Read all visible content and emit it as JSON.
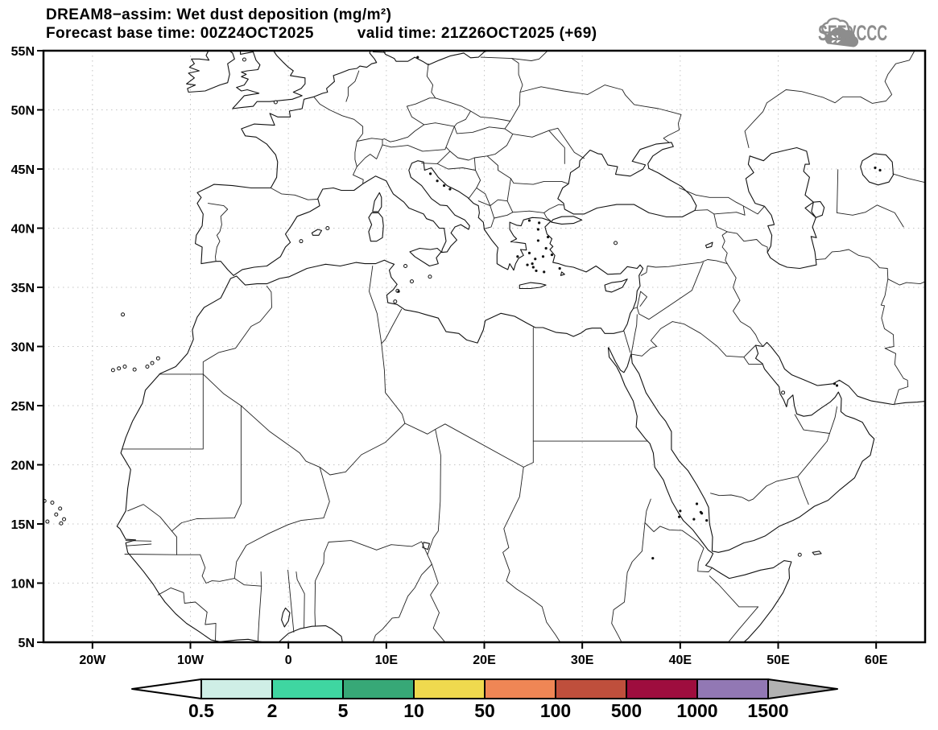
{
  "header": {
    "title": "DREAM8−assim: Wet dust deposition (mg/m²)",
    "forecast_base_label": "Forecast base time: 00Z24OCT2025",
    "valid_time_label": "valid time: 21Z26OCT2025 (+69)",
    "logo_text": "SEEVCCC"
  },
  "map": {
    "lon_min": -25,
    "lon_max": 65,
    "lat_min": 5,
    "lat_max": 55,
    "lat_ticks": [
      {
        "value": 55,
        "label": "55N"
      },
      {
        "value": 50,
        "label": "50N"
      },
      {
        "value": 45,
        "label": "45N"
      },
      {
        "value": 40,
        "label": "40N"
      },
      {
        "value": 35,
        "label": "35N"
      },
      {
        "value": 30,
        "label": "30N"
      },
      {
        "value": 25,
        "label": "25N"
      },
      {
        "value": 20,
        "label": "20N"
      },
      {
        "value": 15,
        "label": "15N"
      },
      {
        "value": 10,
        "label": "10N"
      },
      {
        "value": 5,
        "label": "5N"
      }
    ],
    "lon_ticks": [
      {
        "value": -20,
        "label": "20W"
      },
      {
        "value": -10,
        "label": "10W"
      },
      {
        "value": 0,
        "label": "0"
      },
      {
        "value": 10,
        "label": "10E"
      },
      {
        "value": 20,
        "label": "20E"
      },
      {
        "value": 30,
        "label": "30E"
      },
      {
        "value": 40,
        "label": "40E"
      },
      {
        "value": 50,
        "label": "50E"
      },
      {
        "value": 60,
        "label": "60E"
      }
    ],
    "graticule_lat_step": 5,
    "graticule_lon_step": 10
  },
  "colorbar": {
    "edge_labels": [
      "0.5",
      "2",
      "5",
      "10",
      "50",
      "100",
      "500",
      "1000",
      "1500"
    ],
    "cell_colors": [
      "#cfeee6",
      "#3fd6a1",
      "#37a877",
      "#efd94e",
      "#ef8655",
      "#bf4f3c",
      "#9e0d3e",
      "#9278b4"
    ],
    "under_range_color": "#ffffff",
    "over_range_color": "#b2b2b2",
    "outline_color": "#000000"
  },
  "chart_data": {
    "type": "map",
    "title": "DREAM8−assim: Wet dust deposition (mg/m²)",
    "region_lon": [
      -25,
      65
    ],
    "region_lat": [
      5,
      55
    ],
    "scale_values_mg_m2": [
      0.5,
      2,
      5,
      10,
      50,
      100,
      500,
      1000,
      1500
    ],
    "shaded_deposition_regions": []
  }
}
